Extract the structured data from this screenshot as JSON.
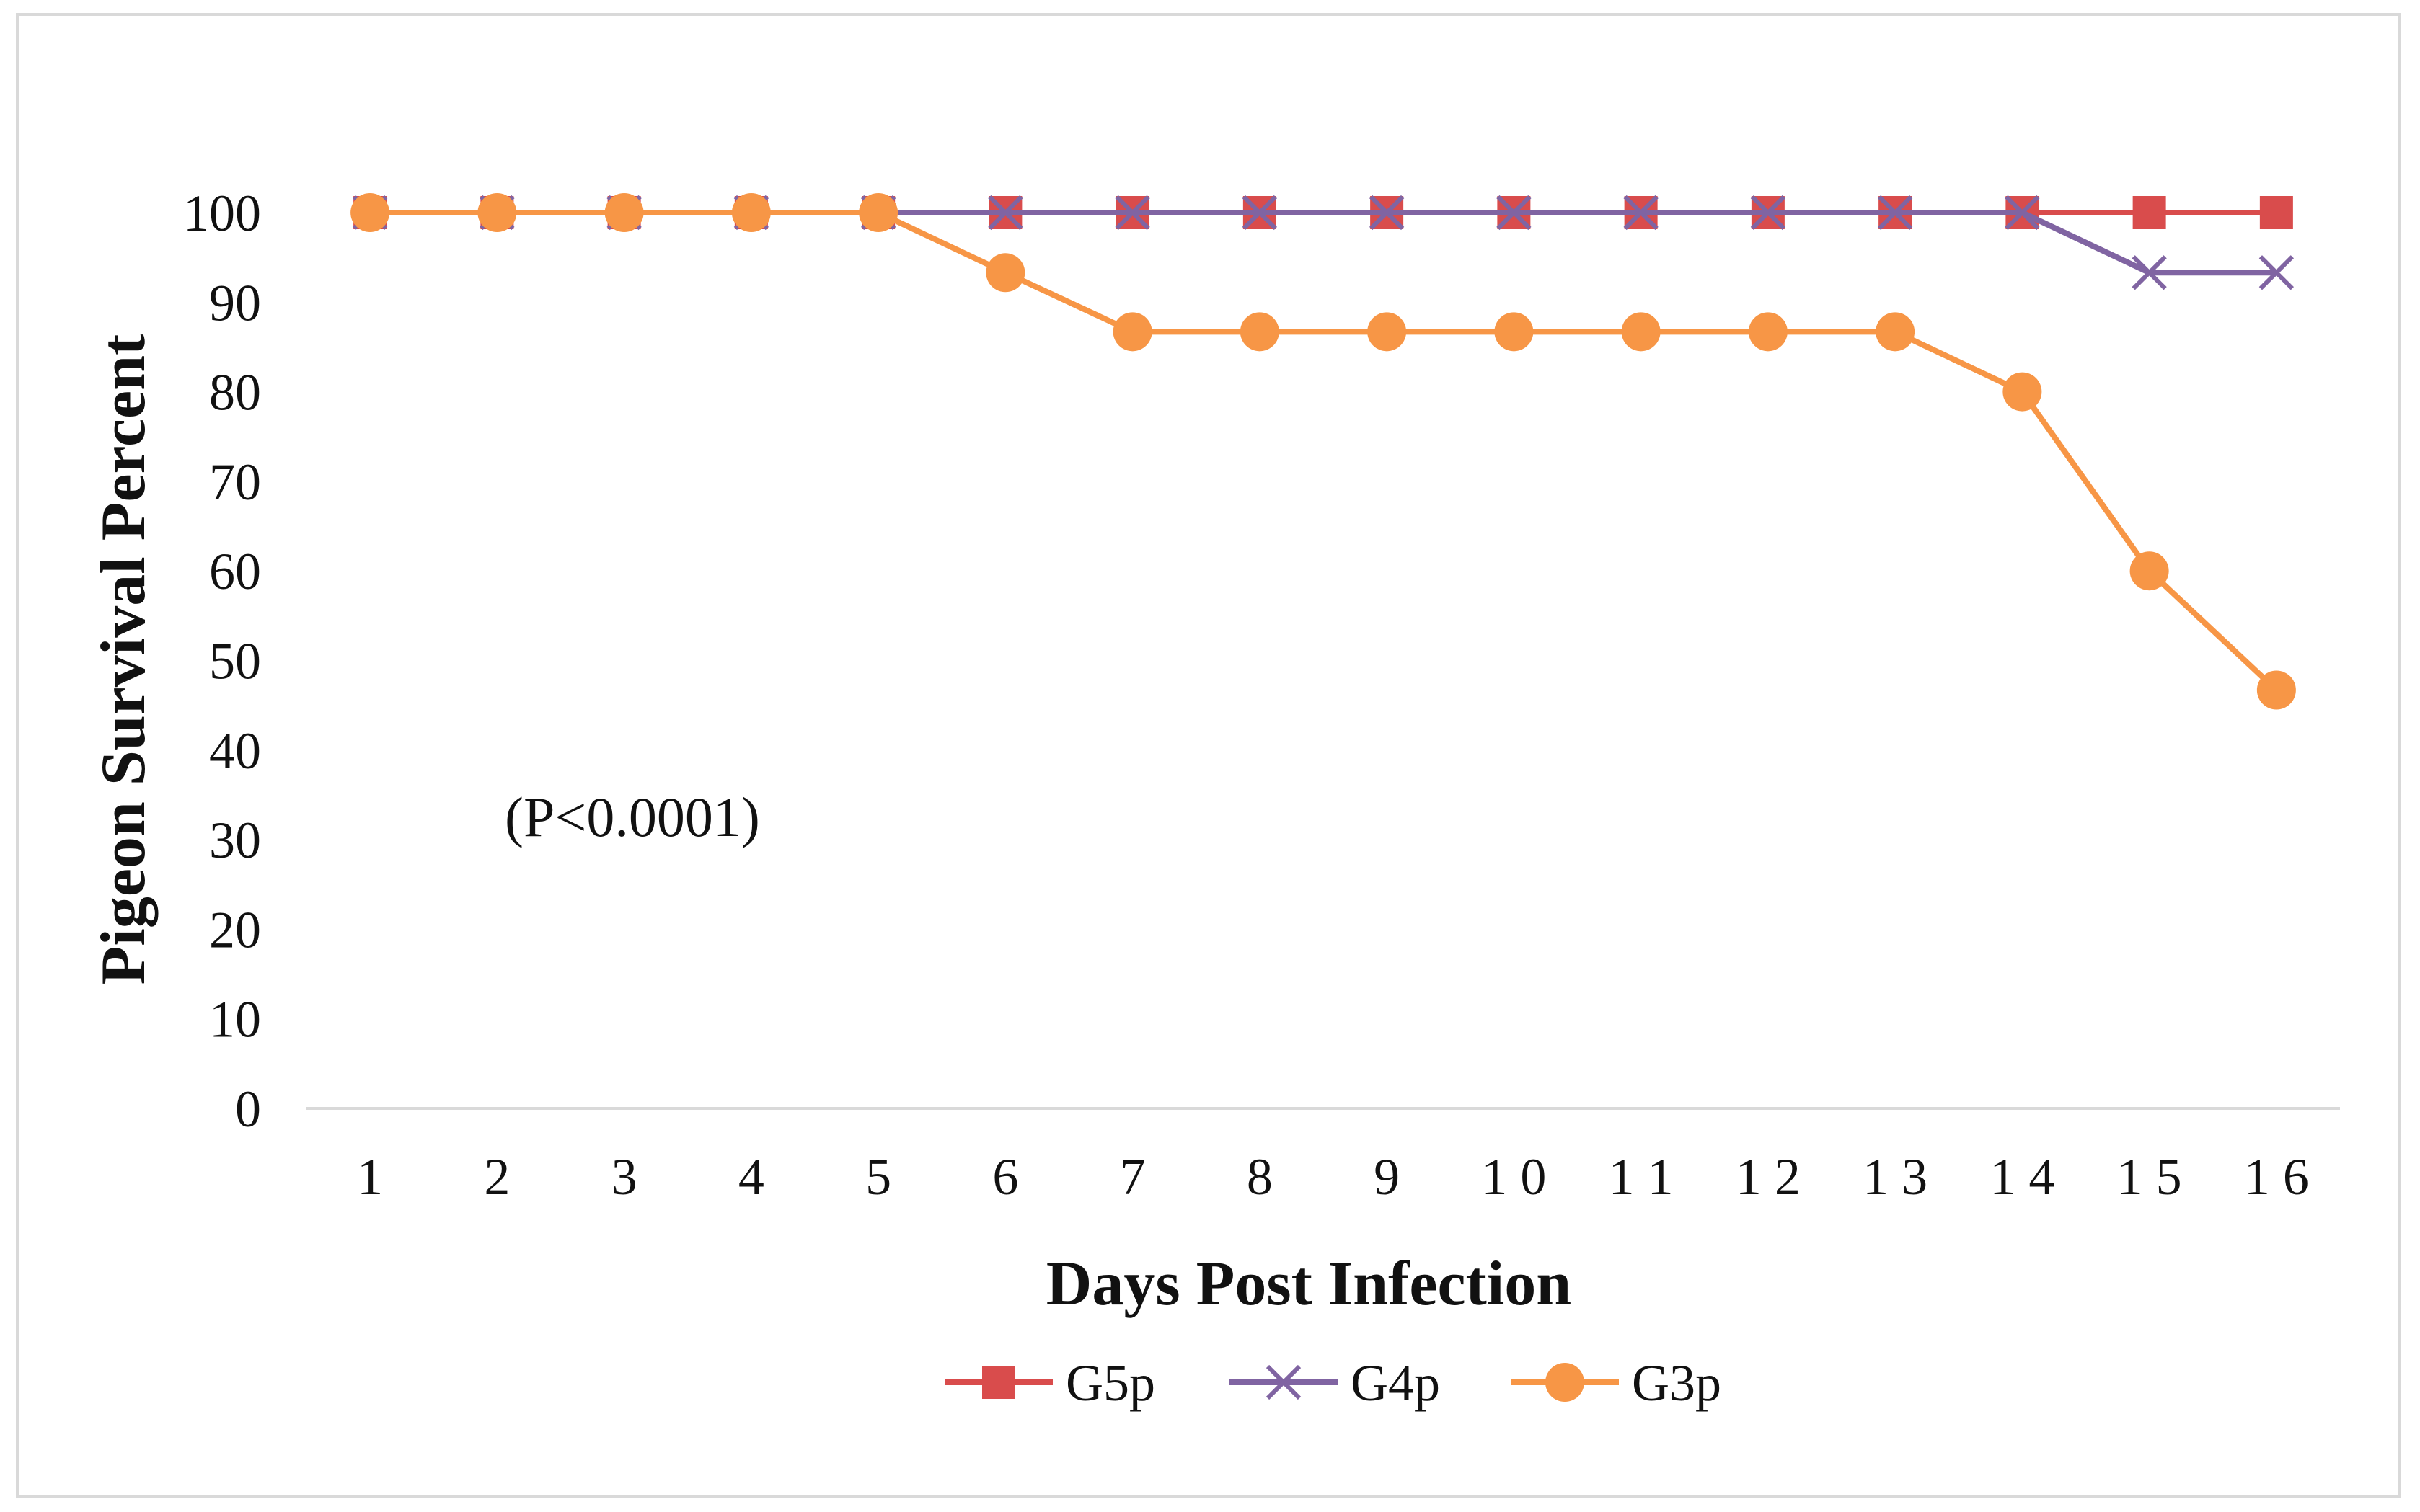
{
  "chart_data": {
    "type": "line",
    "title": "",
    "xlabel": "Days Post Infection",
    "ylabel": "Pigeon Survival Percent",
    "categories": [
      "1",
      "2",
      "3",
      "4",
      "5",
      "6",
      "7",
      "8",
      "9",
      "10",
      "11",
      "12",
      "13",
      "14",
      "15",
      "16"
    ],
    "x_tick_labels": [
      "1",
      "2",
      "3",
      "4",
      "5",
      "6",
      "7",
      "8",
      "9",
      "1 0",
      "1 1",
      "1 2",
      "1 3",
      "1 4",
      "1 5",
      "1 6"
    ],
    "ylim": [
      0,
      100
    ],
    "yticks": [
      0,
      10,
      20,
      30,
      40,
      50,
      60,
      70,
      80,
      90,
      100
    ],
    "grid": false,
    "legend_position": "bottom",
    "annotation": "(P<0.0001)",
    "series": [
      {
        "name": "G5p",
        "color": "#d94c4c",
        "marker": "square",
        "values": [
          100,
          100,
          100,
          100,
          100,
          100,
          100,
          100,
          100,
          100,
          100,
          100,
          100,
          100,
          100,
          100
        ]
      },
      {
        "name": "G4p",
        "color": "#8064a2",
        "marker": "x",
        "values": [
          100,
          100,
          100,
          100,
          100,
          100,
          100,
          100,
          100,
          100,
          100,
          100,
          100,
          100,
          93.3,
          93.3
        ]
      },
      {
        "name": "G3p",
        "color": "#f79646",
        "marker": "circle",
        "values": [
          100,
          100,
          100,
          100,
          100,
          93.3,
          86.7,
          86.7,
          86.7,
          86.7,
          86.7,
          86.7,
          86.7,
          80,
          60,
          46.7
        ]
      }
    ]
  }
}
